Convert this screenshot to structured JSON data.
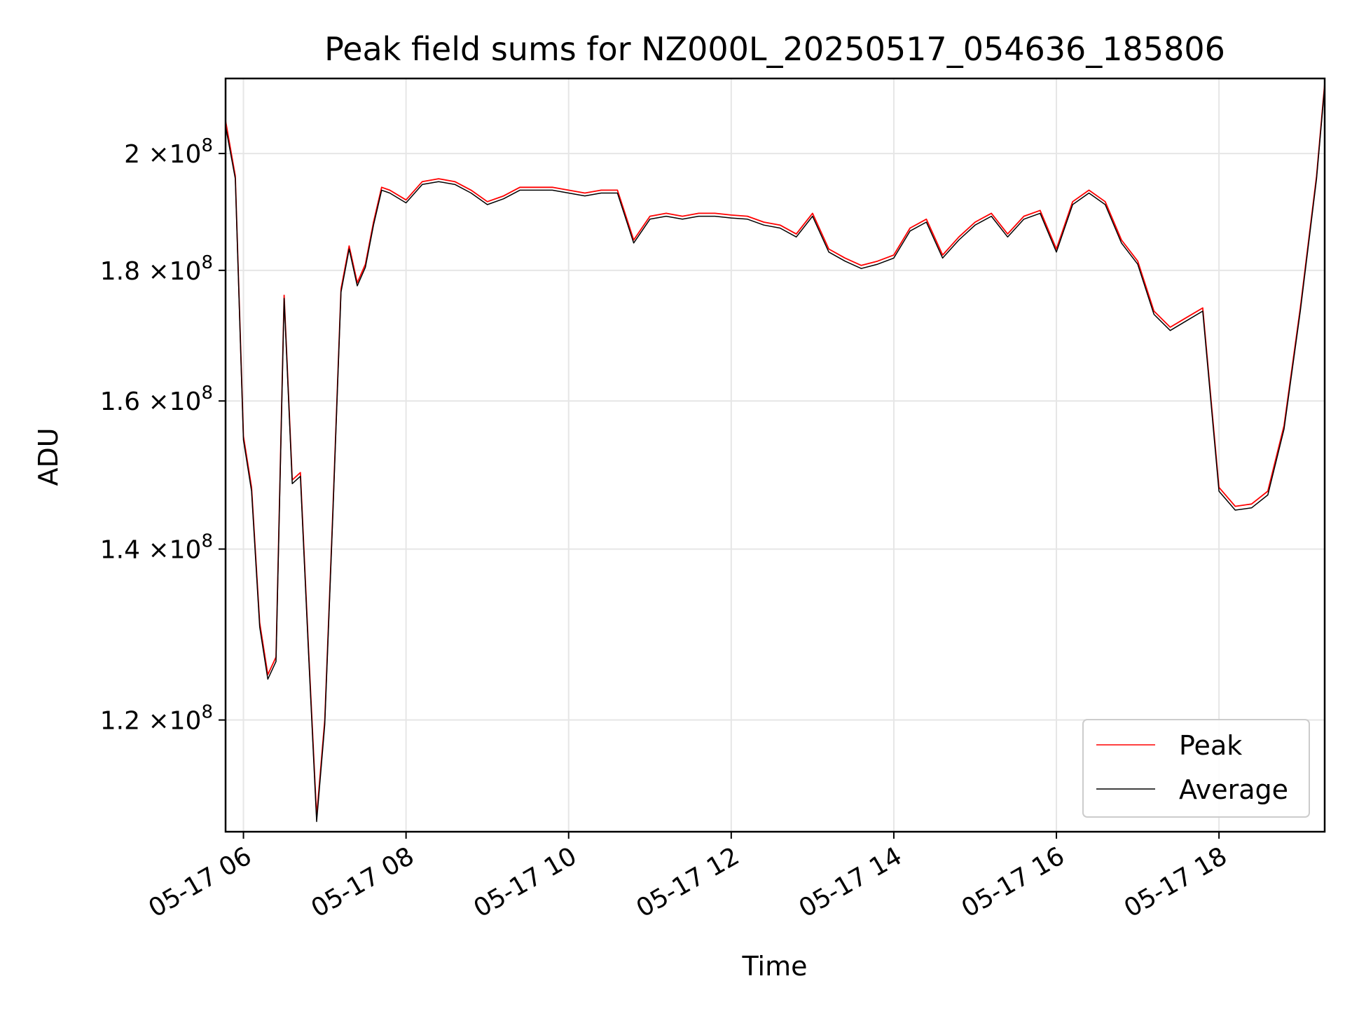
{
  "chart_data": {
    "type": "line",
    "title": "Peak field sums for NZ000L_20250517_054636_185806",
    "xlabel": "Time",
    "ylabel": "ADU",
    "x_unit": "hours (2025-05-17)",
    "xlim": [
      5.78,
      19.3
    ],
    "ylim": [
      108500000.0,
      214000000.0
    ],
    "yscale": "log",
    "grid": true,
    "legend_position": "lower-right",
    "x_ticks": [
      {
        "value": 6,
        "label": "05-17 06"
      },
      {
        "value": 8,
        "label": "05-17 08"
      },
      {
        "value": 10,
        "label": "05-17 10"
      },
      {
        "value": 12,
        "label": "05-17 12"
      },
      {
        "value": 14,
        "label": "05-17 14"
      },
      {
        "value": 16,
        "label": "05-17 16"
      },
      {
        "value": 18,
        "label": "05-17 18"
      }
    ],
    "y_ticks": [
      {
        "value": 120000000,
        "mantissa": "1.2",
        "times": "×10",
        "exp": "8"
      },
      {
        "value": 140000000,
        "mantissa": "1.4",
        "times": "×10",
        "exp": "8"
      },
      {
        "value": 160000000,
        "mantissa": "1.6",
        "times": "×10",
        "exp": "8"
      },
      {
        "value": 180000000,
        "mantissa": "1.8",
        "times": "×10",
        "exp": "8"
      },
      {
        "value": 200000000,
        "mantissa": "2",
        "times": "×10",
        "exp": "8"
      }
    ],
    "x": [
      5.78,
      5.9,
      6.0,
      6.1,
      6.2,
      6.3,
      6.4,
      6.5,
      6.6,
      6.7,
      6.8,
      6.9,
      7.0,
      7.1,
      7.2,
      7.3,
      7.4,
      7.5,
      7.6,
      7.7,
      7.8,
      8.0,
      8.2,
      8.4,
      8.6,
      8.8,
      9.0,
      9.2,
      9.4,
      9.6,
      9.8,
      10.0,
      10.2,
      10.4,
      10.6,
      10.8,
      11.0,
      11.2,
      11.4,
      11.6,
      11.8,
      12.0,
      12.2,
      12.4,
      12.6,
      12.8,
      13.0,
      13.2,
      13.4,
      13.6,
      13.8,
      14.0,
      14.2,
      14.4,
      14.6,
      14.8,
      15.0,
      15.2,
      15.4,
      15.6,
      15.8,
      16.0,
      16.2,
      16.4,
      16.6,
      16.8,
      17.0,
      17.2,
      17.4,
      17.6,
      17.8,
      18.0,
      18.2,
      18.4,
      18.6,
      18.8,
      19.0,
      19.2,
      19.3
    ],
    "series": [
      {
        "name": "Peak",
        "color": "#ff0000",
        "values": [
          206000000,
          196000000,
          155000000,
          148000000,
          131000000,
          125000000,
          127000000,
          176000000,
          149000000,
          150000000,
          128000000,
          110000000,
          120000000,
          145000000,
          177000000,
          184000000,
          178000000,
          181000000,
          188000000,
          194000000,
          193500000,
          191800000,
          195000000,
          195500000,
          195000000,
          193500000,
          191500000,
          192500000,
          194000000,
          194000000,
          194000000,
          193500000,
          193000000,
          193500000,
          193500000,
          185000000,
          189000000,
          189500000,
          189000000,
          189500000,
          189500000,
          189200000,
          189000000,
          188000000,
          187500000,
          186000000,
          189500000,
          183500000,
          182000000,
          180800000,
          181500000,
          182500000,
          187000000,
          188500000,
          182500000,
          185500000,
          188000000,
          189500000,
          186000000,
          189000000,
          190000000,
          183500000,
          191500000,
          193500000,
          191500000,
          185000000,
          181500000,
          173500000,
          171000000,
          172500000,
          174000000,
          148000000,
          145500000,
          145800000,
          147500000,
          156500000,
          174000000,
          196000000,
          213000000
        ]
      },
      {
        "name": "Average",
        "color": "#000000",
        "values": [
          205000000,
          195500000,
          154500000,
          147500000,
          130500000,
          124500000,
          126500000,
          175500000,
          148500000,
          149500000,
          127500000,
          109500000,
          119500000,
          144500000,
          176500000,
          183500000,
          177500000,
          180500000,
          187500000,
          193500000,
          193000000,
          191300000,
          194500000,
          195000000,
          194500000,
          193000000,
          191000000,
          192000000,
          193500000,
          193500000,
          193500000,
          193000000,
          192500000,
          193000000,
          193000000,
          184500000,
          188500000,
          189000000,
          188500000,
          189000000,
          189000000,
          188700000,
          188500000,
          187500000,
          187000000,
          185500000,
          189000000,
          183000000,
          181500000,
          180300000,
          181000000,
          182000000,
          186500000,
          188000000,
          182000000,
          185000000,
          187500000,
          189000000,
          185500000,
          188500000,
          189500000,
          183000000,
          191000000,
          193000000,
          191000000,
          184500000,
          181000000,
          173000000,
          170500000,
          172000000,
          173500000,
          147500000,
          145000000,
          145300000,
          147000000,
          156000000,
          173500000,
          195500000,
          212500000
        ]
      }
    ]
  }
}
